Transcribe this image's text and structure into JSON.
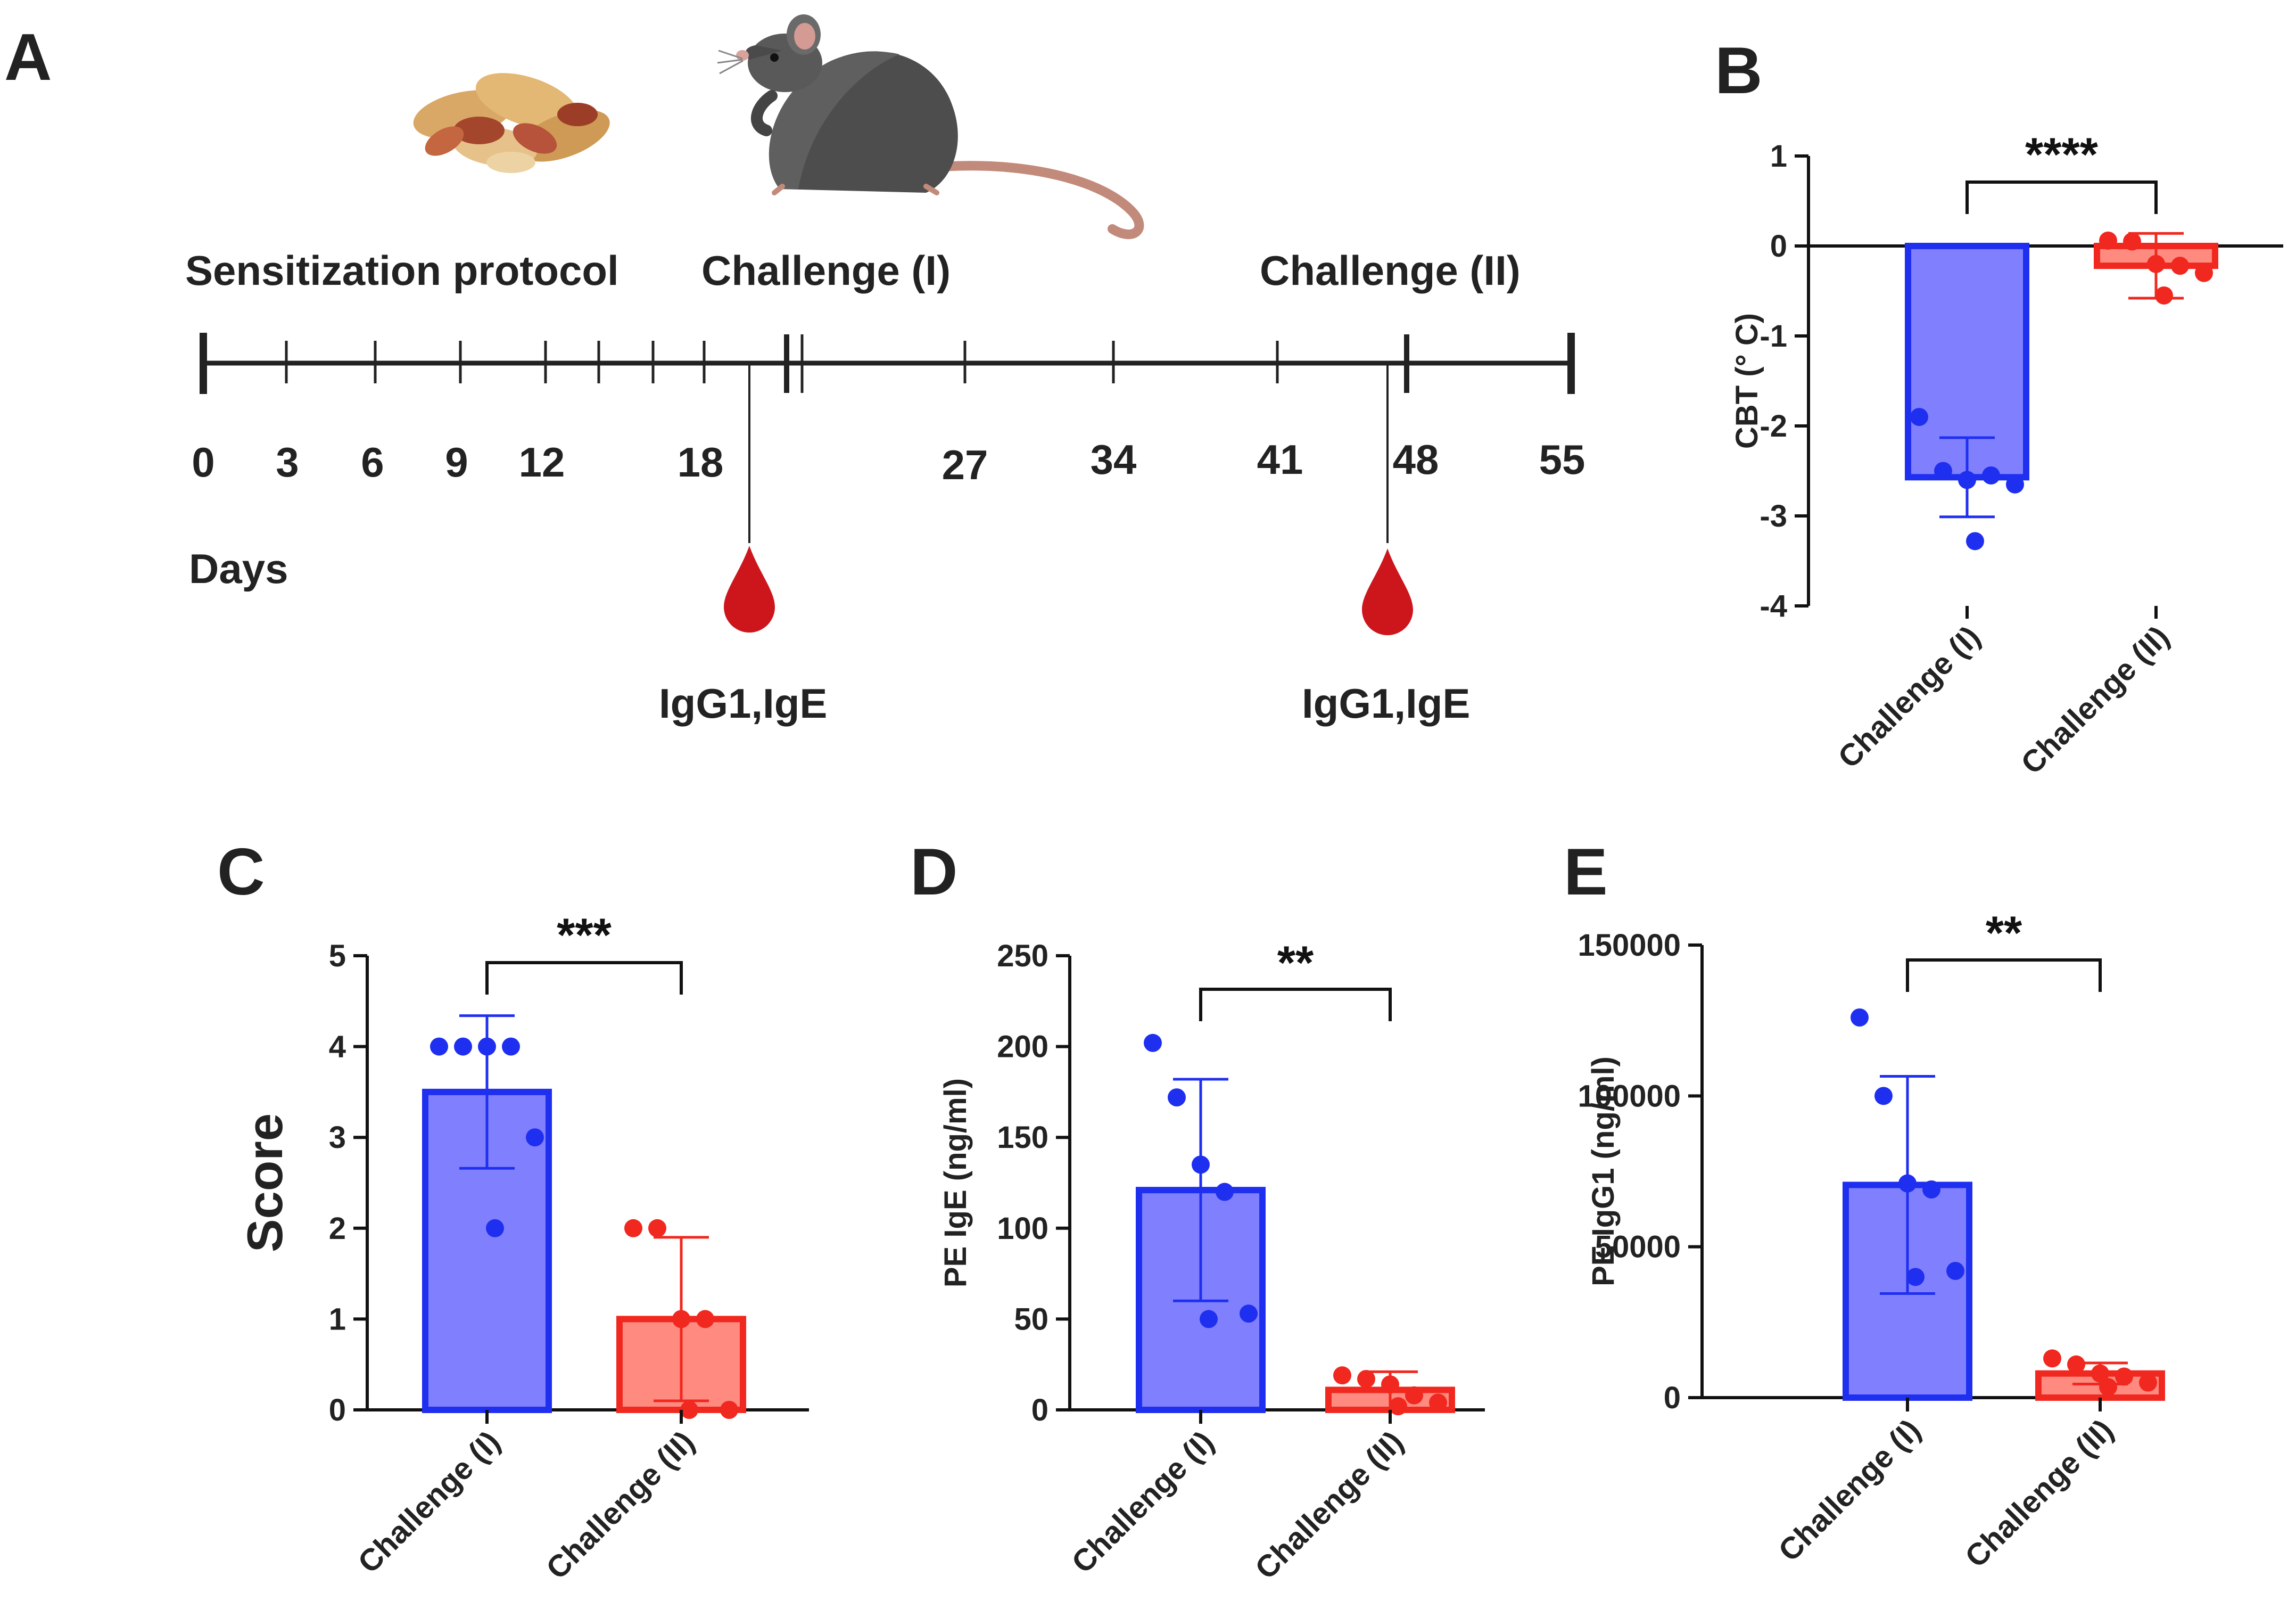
{
  "panels": {
    "A": "A",
    "B": "B",
    "C": "C",
    "D": "D",
    "E": "E"
  },
  "timeline": {
    "protocol_labels": [
      "Sensitization protocol",
      "Challenge (I)",
      "Challenge (II)"
    ],
    "ticks": [
      "0",
      "3",
      "6",
      "9",
      "12",
      "18",
      "27",
      "34",
      "41",
      "48",
      "55"
    ],
    "axis_label": "Days",
    "sample_labels": [
      "IgG1,IgE",
      "IgG1,IgE"
    ],
    "icons": [
      "peanuts-icon",
      "mouse-icon",
      "blood-drop-icon"
    ]
  },
  "colors": {
    "challenge1_fill": "#8080ff",
    "challenge1_stroke": "#1f2ff0",
    "challenge2_fill": "#ff8a80",
    "challenge2_stroke": "#f0281f",
    "axis": "#111111",
    "drop": "#cc161c"
  },
  "chart_data": [
    {
      "panel": "B",
      "type": "bar",
      "categories": [
        "Challenge (I)",
        "Challenge (II)"
      ],
      "values": [
        -2.57,
        -0.22
      ],
      "sd": [
        0.44,
        0.36
      ],
      "points": [
        [
          -1.9,
          -2.5,
          -2.6,
          -2.55,
          -2.65,
          -3.28
        ],
        [
          0.06,
          0.05,
          -0.2,
          -0.22,
          -0.3,
          -0.55
        ]
      ],
      "ylabel": "CBT (° C)",
      "ylim": [
        -4,
        1
      ],
      "yticks": [
        "1",
        "0",
        "-1",
        "-2",
        "-3",
        "-4"
      ],
      "significance": "****"
    },
    {
      "panel": "C",
      "type": "bar",
      "categories": [
        "Challenge (I)",
        "Challenge (II)"
      ],
      "values": [
        3.5,
        1.0
      ],
      "sd": [
        0.84,
        0.9
      ],
      "points": [
        [
          4,
          4,
          4,
          4,
          3,
          2
        ],
        [
          2,
          2,
          1,
          1,
          0,
          0
        ]
      ],
      "ylabel": "Score",
      "ylim": [
        0,
        5
      ],
      "yticks": [
        "5",
        "4",
        "3",
        "2",
        "1",
        "0"
      ],
      "significance": "***"
    },
    {
      "panel": "D",
      "type": "bar",
      "categories": [
        "Challenge (I)",
        "Challenge (II)"
      ],
      "values": [
        121,
        11
      ],
      "sd": [
        61,
        10
      ],
      "points": [
        [
          202,
          172,
          135,
          120,
          53,
          50
        ],
        [
          19,
          17,
          14,
          8,
          4,
          2
        ]
      ],
      "ylabel": "PE IgE (ng/ml)",
      "ylim": [
        0,
        250
      ],
      "yticks": [
        "250",
        "200",
        "150",
        "100",
        "50",
        "0"
      ],
      "significance": "**"
    },
    {
      "panel": "E",
      "type": "bar",
      "categories": [
        "Challenge (I)",
        "Challenge (II)"
      ],
      "values": [
        70500,
        8000
      ],
      "sd": [
        36000,
        3500
      ],
      "points": [
        [
          126000,
          100000,
          71000,
          69000,
          42000,
          40000
        ],
        [
          13000,
          11000,
          8000,
          7000,
          5000,
          3500
        ]
      ],
      "ylabel": "PE IgG1 (ng/ml)",
      "ylim": [
        0,
        150000
      ],
      "yticks": [
        "150000",
        "100000",
        "50000",
        "0"
      ],
      "significance": "**"
    }
  ]
}
